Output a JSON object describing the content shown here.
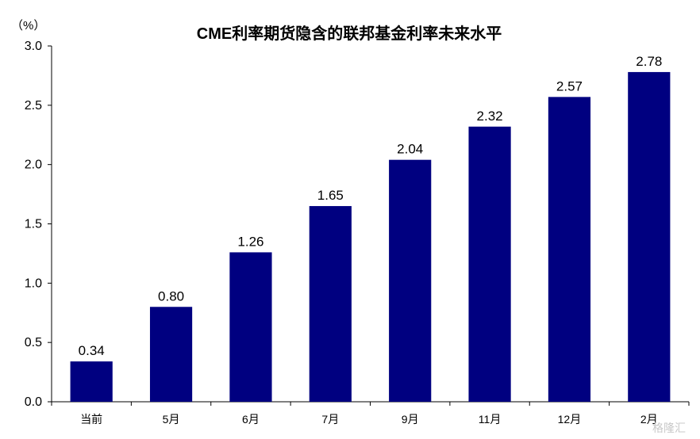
{
  "chart_data": {
    "type": "bar",
    "title": "CME利率期货隐含的联邦基金利率未来水平",
    "unit": "（%）",
    "categories": [
      "当前",
      "5月",
      "6月",
      "7月",
      "9月",
      "11月",
      "12月",
      "2月"
    ],
    "values": [
      0.34,
      0.8,
      1.26,
      1.65,
      2.04,
      2.32,
      2.57,
      2.78
    ],
    "value_labels": [
      "0.34",
      "0.80",
      "1.26",
      "1.65",
      "2.04",
      "2.32",
      "2.57",
      "2.78"
    ],
    "ylim": [
      0,
      3.0
    ],
    "yticks": [
      "0.0",
      "0.5",
      "1.0",
      "1.5",
      "2.0",
      "2.5",
      "3.0"
    ],
    "ytick_values": [
      0,
      0.5,
      1.0,
      1.5,
      2.0,
      2.5,
      3.0
    ],
    "grid": false,
    "bar_color": "#000080"
  },
  "watermark": "格隆汇"
}
